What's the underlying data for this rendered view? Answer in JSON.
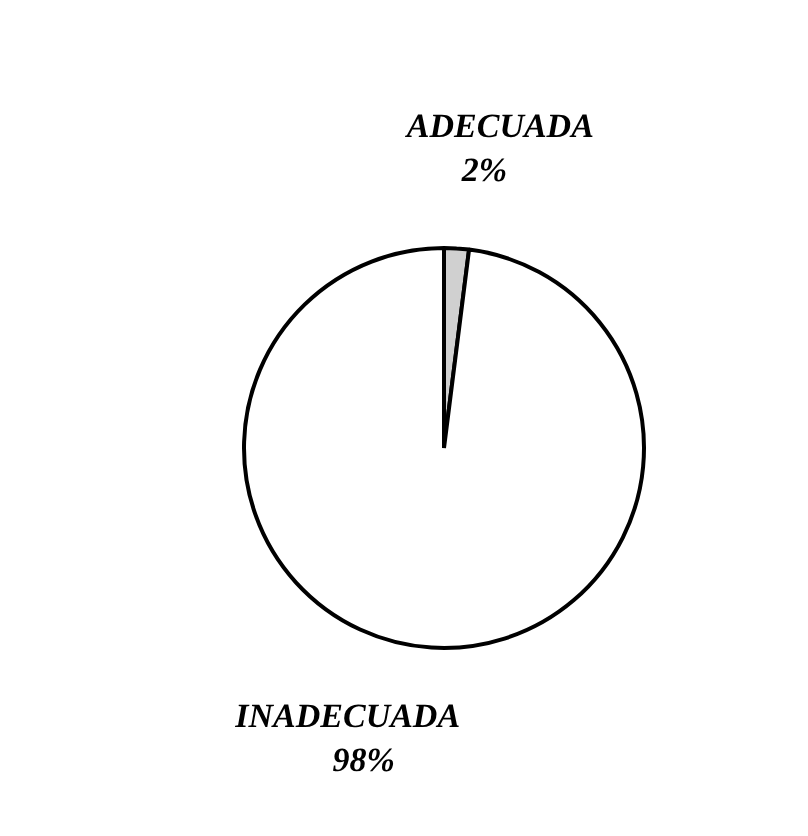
{
  "chart_data": {
    "type": "pie",
    "categories": [
      "ADECUADA",
      "INADECUADA"
    ],
    "values": [
      2,
      98
    ],
    "value_labels": [
      "2%",
      "98%"
    ],
    "colors": [
      "#d0d0d0",
      "#ffffff"
    ],
    "legend": false
  }
}
